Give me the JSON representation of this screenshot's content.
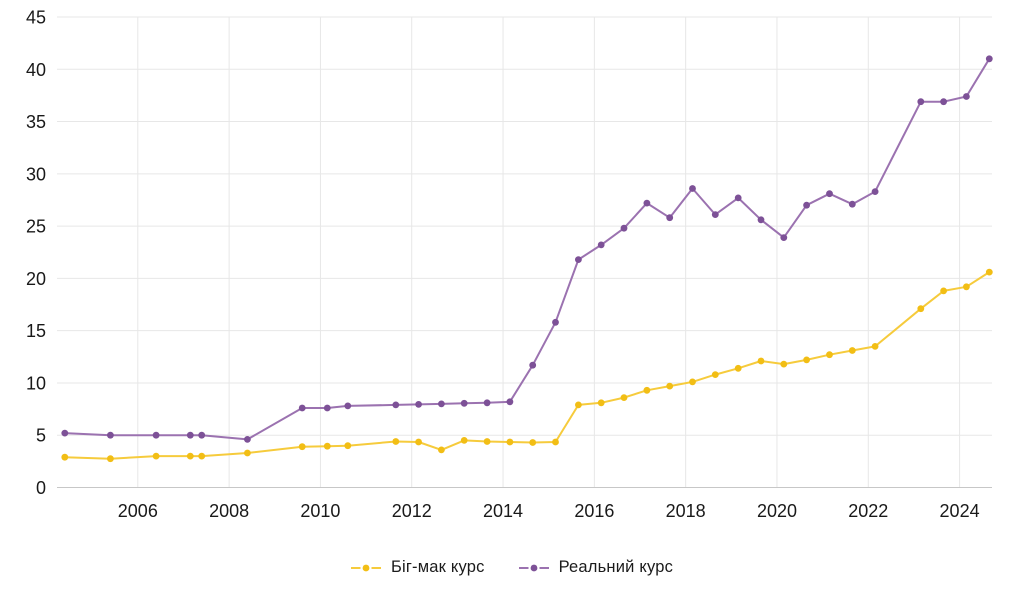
{
  "chart_data": {
    "type": "line",
    "title": "",
    "xlabel": "",
    "ylabel": "",
    "grid": true,
    "legend_position": "bottom",
    "background_color": "#FFFFFF",
    "grid_color": "#E7E7E7",
    "axis_line_color": "#C7C7C7",
    "tick_label_color": "#191919",
    "ylim": [
      0,
      45
    ],
    "xlim": [
      2004.23,
      2024.71
    ],
    "y_ticks": [
      0,
      5,
      10,
      15,
      20,
      25,
      30,
      35,
      40,
      45
    ],
    "x_ticks": [
      2006,
      2008,
      2010,
      2012,
      2014,
      2016,
      2018,
      2020,
      2022,
      2024
    ],
    "x": [
      2004.4,
      2005.4,
      2006.4,
      2007.15,
      2007.4,
      2008.4,
      2009.6,
      2010.15,
      2010.6,
      2011.65,
      2012.15,
      2012.65,
      2013.15,
      2013.65,
      2014.15,
      2014.65,
      2015.15,
      2015.65,
      2016.15,
      2016.65,
      2017.15,
      2017.65,
      2018.15,
      2018.65,
      2019.15,
      2019.65,
      2020.15,
      2020.65,
      2021.15,
      2021.65,
      2022.15,
      2023.15,
      2023.65,
      2024.15,
      2024.65
    ],
    "series": [
      {
        "name": "Біг-мак курс",
        "line_color": "#F6CB3C",
        "marker_color": "#F2BE15",
        "values": [
          2.9,
          2.75,
          3.0,
          3.0,
          3.0,
          3.3,
          3.9,
          3.95,
          4.0,
          4.4,
          4.35,
          3.6,
          4.5,
          4.4,
          4.35,
          4.3,
          4.35,
          7.9,
          8.1,
          8.6,
          9.3,
          9.7,
          10.1,
          10.8,
          11.4,
          12.1,
          11.8,
          12.2,
          12.7,
          13.1,
          13.5,
          17.1,
          18.8,
          19.2,
          20.6
        ]
      },
      {
        "name": "Реальний курс",
        "line_color": "#9B72B0",
        "marker_color": "#7D5197",
        "values": [
          5.2,
          5.0,
          5.0,
          5.0,
          5.0,
          4.6,
          7.6,
          7.6,
          7.8,
          7.9,
          7.95,
          8.0,
          8.05,
          8.1,
          8.2,
          11.7,
          15.8,
          21.8,
          23.2,
          24.8,
          27.2,
          25.8,
          28.6,
          26.1,
          27.7,
          25.6,
          23.9,
          27.0,
          28.1,
          27.1,
          28.3,
          36.9,
          36.9,
          37.4,
          41.0
        ]
      }
    ]
  }
}
